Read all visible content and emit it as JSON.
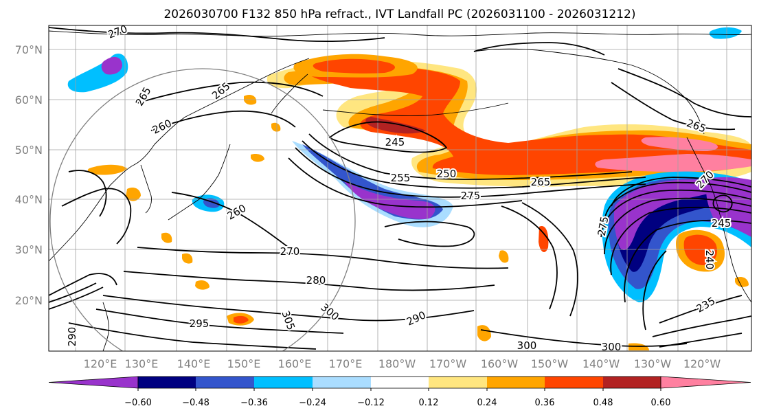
{
  "title": "2026030700 F132 850 hPa refract., IVT Landfall PC (2026031100 - 2026031212)",
  "map": {
    "lat_labels": [
      "70°N",
      "60°N",
      "50°N",
      "40°N",
      "30°N",
      "20°N"
    ],
    "lon_labels": [
      "120°E",
      "130°E",
      "140°E",
      "150°E",
      "160°E",
      "170°E",
      "180°W",
      "170°W",
      "160°W",
      "150°W",
      "140°W",
      "130°W",
      "120°W"
    ],
    "contour_labels": [
      "270",
      "265",
      "265",
      "260",
      "245",
      "250",
      "255",
      "265",
      "275",
      "260",
      "270",
      "280",
      "295",
      "300",
      "305",
      "290",
      "290",
      "300",
      "300",
      "235",
      "270",
      "265",
      "245",
      "240",
      "275"
    ]
  },
  "colorbar": {
    "colors": [
      "#9933cc",
      "#000080",
      "#3355cc",
      "#00bfff",
      "#aaddff",
      "#ffffff",
      "#ffe680",
      "#ffa500",
      "#ff4500",
      "#b22222",
      "#ff80a0"
    ],
    "tick_labels": [
      "−0.60",
      "−0.48",
      "−0.36",
      "−0.24",
      "−0.12",
      "0.12",
      "0.24",
      "0.36",
      "0.48",
      "0.60"
    ]
  }
}
